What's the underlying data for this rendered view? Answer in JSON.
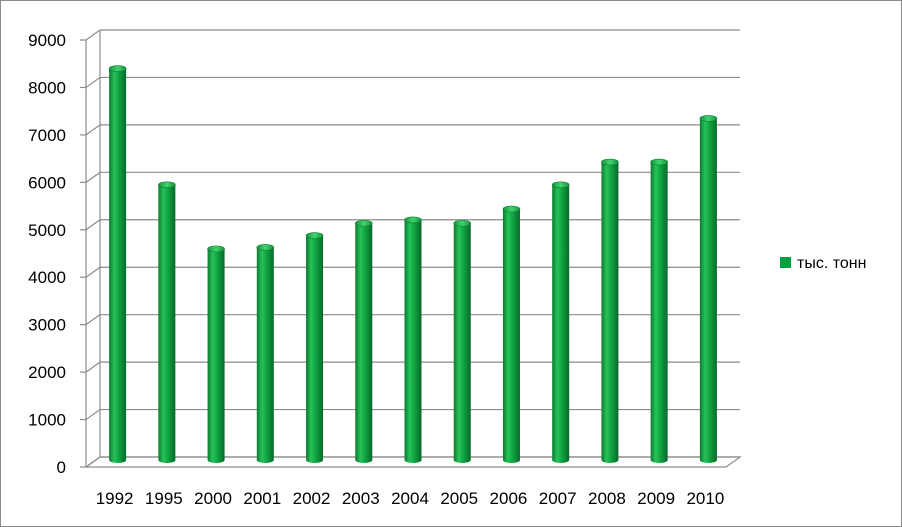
{
  "chart_data": {
    "type": "bar",
    "style": "3d-cylinder",
    "title": "",
    "xlabel": "",
    "ylabel": "",
    "categories": [
      "1992",
      "1995",
      "2000",
      "2001",
      "2002",
      "2003",
      "2004",
      "2005",
      "2006",
      "2007",
      "2008",
      "2009",
      "2010"
    ],
    "series": [
      {
        "name": "тыс. тонн",
        "color": "#00a040",
        "values": [
          8250,
          5800,
          4450,
          4480,
          4730,
          4990,
          5060,
          4990,
          5290,
          5800,
          6280,
          6280,
          7200
        ]
      }
    ],
    "ylim": [
      0,
      9000
    ],
    "yticks": [
      "0",
      "1000",
      "2000",
      "3000",
      "4000",
      "5000",
      "6000",
      "7000",
      "8000",
      "9000"
    ],
    "grid": true,
    "legend_position": "right"
  }
}
